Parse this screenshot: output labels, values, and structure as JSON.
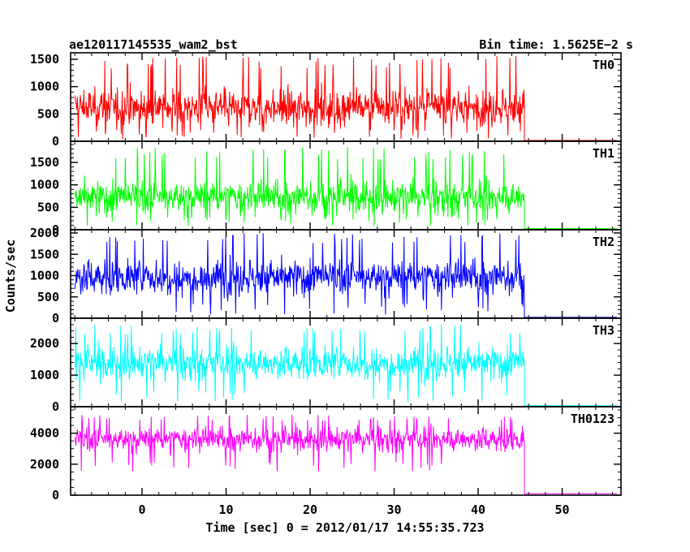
{
  "header": {
    "title": "ae120117145535_wam2_bst",
    "bin_time": "Bin time: 1.5625E−2 s"
  },
  "chart_data": {
    "type": "line",
    "xlabel": "Time [sec] 0 = 2012/01/17 14:55:35.723",
    "ylabel": "Counts/sec",
    "xlim": [
      -8.5,
      57
    ],
    "x_ticks": [
      0,
      10,
      20,
      30,
      40,
      50
    ],
    "x_minor_step": 2,
    "step_time": 45.5,
    "x_start": -8.0,
    "x_end": 56.5,
    "bin_sec": 0.015625,
    "panels": [
      {
        "name": "TH0",
        "color": "#ff0000",
        "ylim": [
          0,
          1560
        ],
        "y_ticks": [
          0,
          500,
          1000,
          1500
        ],
        "y_minor_step": 100,
        "mean": 620,
        "min": 30,
        "max": 1560,
        "post_level": 15
      },
      {
        "name": "TH1",
        "color": "#00ff00",
        "ylim": [
          0,
          1900
        ],
        "y_ticks": [
          0,
          500,
          1000,
          1500
        ],
        "y_minor_step": 100,
        "mean": 720,
        "min": 80,
        "max": 1850,
        "post_level": 25
      },
      {
        "name": "TH2",
        "color": "#0000ff",
        "ylim": [
          0,
          2000
        ],
        "y_ticks": [
          0,
          500,
          1000,
          1500,
          2000
        ],
        "y_minor_step": 100,
        "mean": 960,
        "min": 80,
        "max": 2000,
        "post_level": 20
      },
      {
        "name": "TH3",
        "color": "#00ffff",
        "ylim": [
          0,
          2700
        ],
        "y_ticks": [
          0,
          1000,
          2000
        ],
        "y_minor_step": 200,
        "mean": 1380,
        "min": 150,
        "max": 2600,
        "post_level": 30
      },
      {
        "name": "TH0123",
        "color": "#ff00ff",
        "ylim": [
          0,
          5500
        ],
        "y_ticks": [
          0,
          2000,
          4000
        ],
        "y_minor_step": 500,
        "mean": 3600,
        "min": 1500,
        "max": 5200,
        "post_level": 100
      }
    ]
  }
}
